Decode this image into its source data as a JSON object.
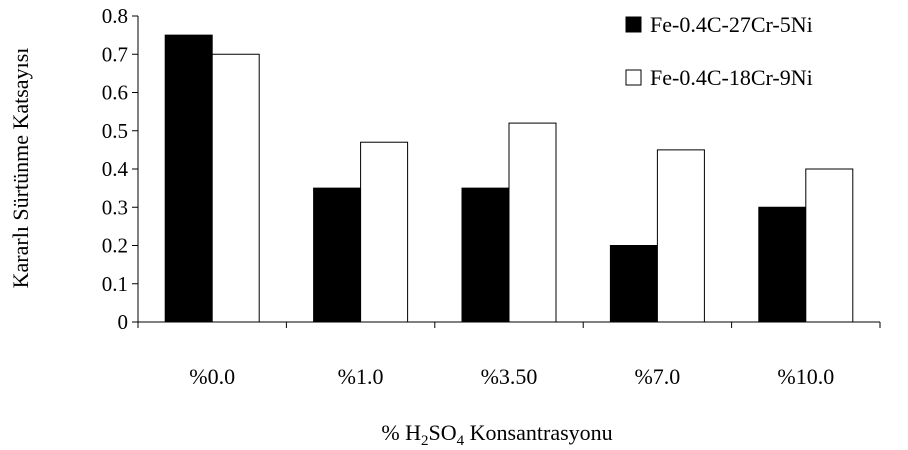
{
  "chart_data": {
    "type": "bar",
    "xlabel": {
      "prefix": "% H",
      "sub1": "2",
      "mid": "SO",
      "sub2": "4",
      "suffix": " Konsantrasyonu"
    },
    "ylabel": "Kararlı Sürtünme Katsayısı",
    "categories": [
      "%0.0",
      "%1.0",
      "%3.50",
      "%7.0",
      "%10.0"
    ],
    "ylim": [
      0,
      0.8
    ],
    "yticks": [
      "0",
      "0.1",
      "0.2",
      "0.3",
      "0.4",
      "0.5",
      "0.6",
      "0.7",
      "0.8"
    ],
    "legend_position": "top-right",
    "grid": false,
    "series": [
      {
        "name": "Fe-0.4C-27Cr-5Ni",
        "color": "#000000",
        "values": [
          0.75,
          0.35,
          0.35,
          0.2,
          0.3
        ]
      },
      {
        "name": "Fe-0.4C-18Cr-9Ni",
        "color": "#ffffff",
        "values": [
          0.7,
          0.47,
          0.52,
          0.45,
          0.4
        ]
      }
    ]
  }
}
